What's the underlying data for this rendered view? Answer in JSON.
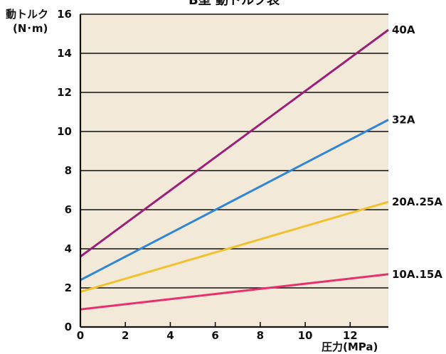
{
  "chart_data": {
    "type": "line",
    "title": "B型 動トルク表",
    "ylabel_line1": "動トルク",
    "ylabel_line2": "(N･m)",
    "xlabel": "圧力(MPa)",
    "xlim": [
      0,
      13.7
    ],
    "ylim": [
      0,
      16
    ],
    "xticks": [
      0,
      2,
      4,
      6,
      8,
      10,
      12
    ],
    "yticks": [
      0,
      2,
      4,
      6,
      8,
      10,
      12,
      14,
      16
    ],
    "grid_y": true,
    "background": "#F3E9D9",
    "series": [
      {
        "name": "40A",
        "color": "#9B1E78",
        "x": [
          0,
          13.7
        ],
        "y": [
          3.6,
          15.2
        ]
      },
      {
        "name": "32A",
        "color": "#2F86D6",
        "x": [
          0,
          13.7
        ],
        "y": [
          2.4,
          10.6
        ]
      },
      {
        "name": "20A.25A",
        "color": "#F2C12E",
        "x": [
          0,
          13.7
        ],
        "y": [
          1.8,
          6.4
        ]
      },
      {
        "name": "10A.15A",
        "color": "#E8306E",
        "x": [
          0,
          13.7
        ],
        "y": [
          0.9,
          2.7
        ]
      }
    ]
  }
}
